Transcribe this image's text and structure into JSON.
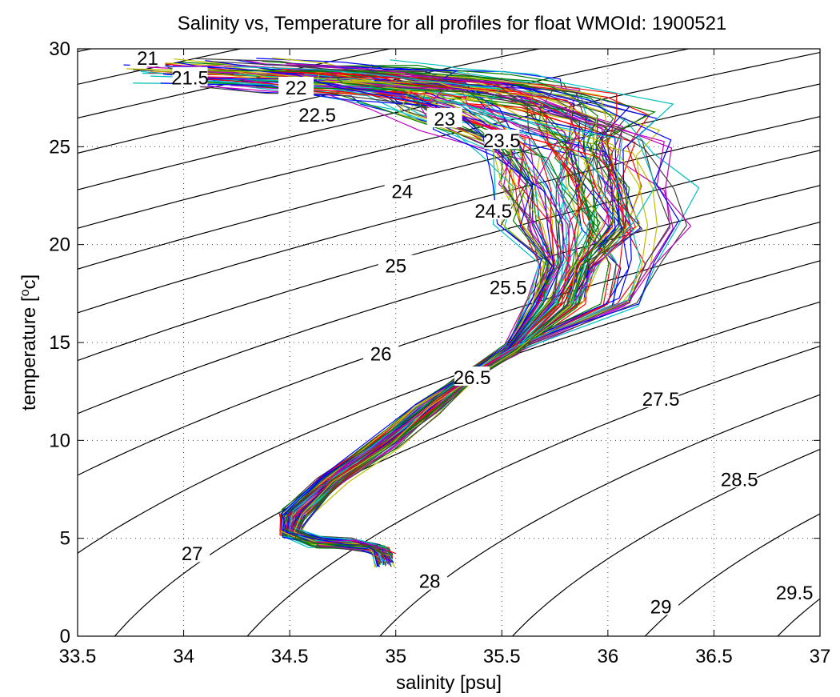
{
  "chart_data": {
    "type": "line",
    "title": "Salinity vs, Temperature for all profiles for float WMOId: 1900521",
    "xlabel": "salinity [psu]",
    "ylabel_prefix": "temperature [",
    "ylabel_sup": "o",
    "ylabel_suffix": "c]",
    "xlim": [
      33.5,
      37
    ],
    "ylim": [
      0,
      30
    ],
    "xticks": [
      "33.5",
      "34",
      "34.5",
      "35",
      "35.5",
      "36",
      "36.5",
      "37"
    ],
    "yticks": [
      "0",
      "5",
      "10",
      "15",
      "20",
      "25",
      "30"
    ],
    "grid": true,
    "density_contours": [
      {
        "label": "21",
        "label_at": [
          33.83,
          29.5
        ]
      },
      {
        "label": "21.5",
        "label_at": [
          34.03,
          28.5
        ]
      },
      {
        "label": "22",
        "label_at": [
          34.53,
          28.0
        ]
      },
      {
        "label": "22.5",
        "label_at": [
          34.63,
          26.6
        ]
      },
      {
        "label": "23",
        "label_at": [
          35.23,
          26.4
        ]
      },
      {
        "label": "23.5",
        "label_at": [
          35.5,
          25.3
        ]
      },
      {
        "label": "24",
        "label_at": [
          35.03,
          22.7
        ]
      },
      {
        "label": "24.5",
        "label_at": [
          35.46,
          21.7
        ]
      },
      {
        "label": "25",
        "label_at": [
          35.0,
          18.9
        ]
      },
      {
        "label": "25.5",
        "label_at": [
          35.53,
          17.8
        ]
      },
      {
        "label": "26",
        "label_at": [
          34.93,
          14.4
        ]
      },
      {
        "label": "26.5",
        "label_at": [
          35.36,
          13.2
        ]
      },
      {
        "label": "27",
        "label_at": [
          34.04,
          4.2
        ]
      },
      {
        "label": "27.5",
        "label_at": [
          36.25,
          12.1
        ]
      },
      {
        "label": "28",
        "label_at": [
          35.16,
          2.8
        ]
      },
      {
        "label": "28.5",
        "label_at": [
          36.62,
          8.0
        ]
      },
      {
        "label": "29",
        "label_at": [
          36.25,
          1.5
        ]
      },
      {
        "label": "29.5",
        "label_at": [
          36.88,
          2.2
        ]
      }
    ],
    "profile_count": 100,
    "profile_colors": [
      "#0000ff",
      "#008000",
      "#ff0000",
      "#00bfbf",
      "#bf00bf",
      "#bfbf00",
      "#404040"
    ],
    "mean_profile": {
      "salinity": [
        34.95,
        34.92,
        34.8,
        34.62,
        34.5,
        34.52,
        34.7,
        34.95,
        35.15,
        35.35,
        35.55,
        35.75,
        35.82,
        35.85,
        35.82,
        35.75,
        35.62,
        35.4,
        35.15,
        34.9,
        34.6,
        34.3
      ],
      "temperature": [
        3.8,
        4.4,
        4.7,
        4.8,
        5.3,
        6.2,
        8.0,
        9.9,
        11.6,
        13.3,
        14.7,
        17.0,
        19.0,
        21.0,
        23.0,
        25.0,
        26.5,
        27.6,
        28.1,
        28.4,
        28.6,
        28.8
      ]
    }
  }
}
